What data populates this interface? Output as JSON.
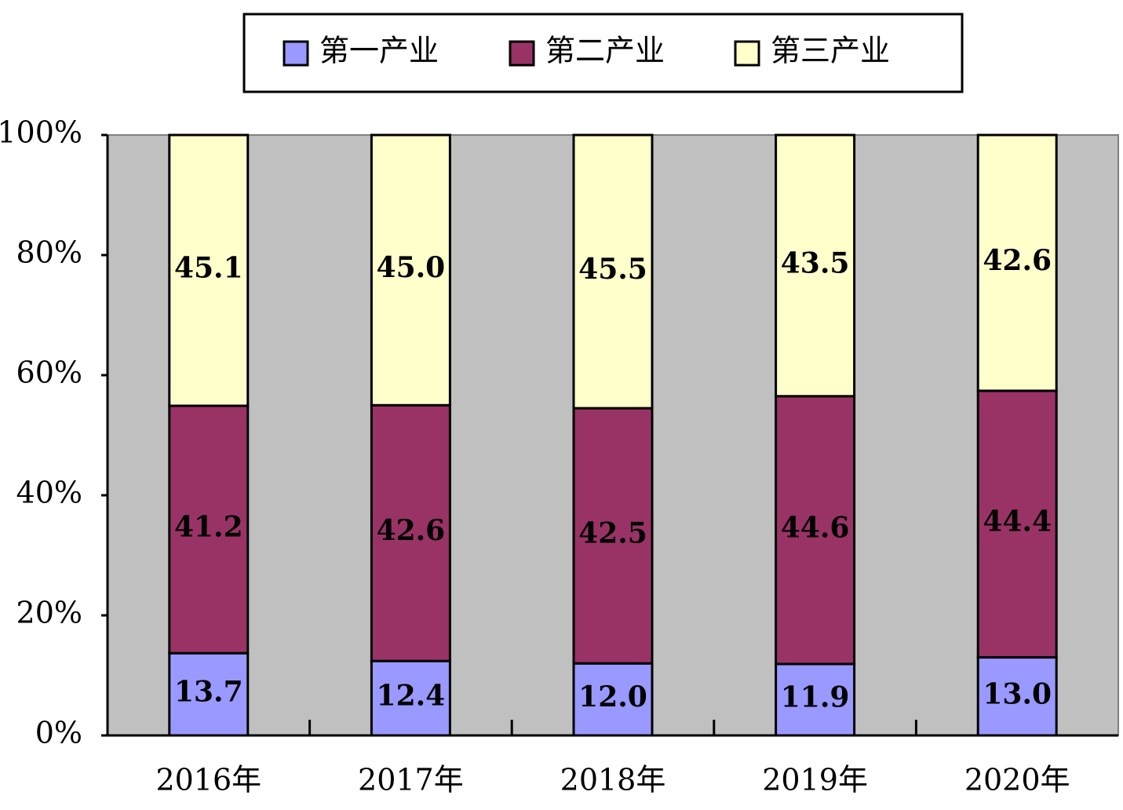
{
  "chart_data": {
    "type": "stacked_bar",
    "categories": [
      "2016年",
      "2017年",
      "2018年",
      "2019年",
      "2020年"
    ],
    "series": [
      {
        "name": "第一产业",
        "color": "#9999ff",
        "values": [
          13.7,
          12.4,
          12.0,
          11.9,
          13.0
        ],
        "value_labels": [
          "13.7",
          "12.4",
          "12.0",
          "11.9",
          "13.0"
        ]
      },
      {
        "name": "第二产业",
        "color": "#993366",
        "values": [
          41.2,
          42.6,
          42.5,
          44.6,
          44.4
        ],
        "value_labels": [
          "41.2",
          "42.6",
          "42.5",
          "44.6",
          "44.4"
        ]
      },
      {
        "name": "第三产业",
        "color": "#ffffcc",
        "values": [
          45.1,
          45.0,
          45.5,
          43.5,
          42.6
        ],
        "value_labels": [
          "45.1",
          "45.0",
          "45.5",
          "43.5",
          "42.6"
        ]
      }
    ],
    "ylim": [
      0,
      100
    ],
    "yticks": [
      {
        "value": 0,
        "label": "0%"
      },
      {
        "value": 20,
        "label": "20%"
      },
      {
        "value": 40,
        "label": "40%"
      },
      {
        "value": 60,
        "label": "60%"
      },
      {
        "value": 80,
        "label": "80%"
      },
      {
        "value": 100,
        "label": "100%"
      }
    ],
    "legend": "top"
  }
}
